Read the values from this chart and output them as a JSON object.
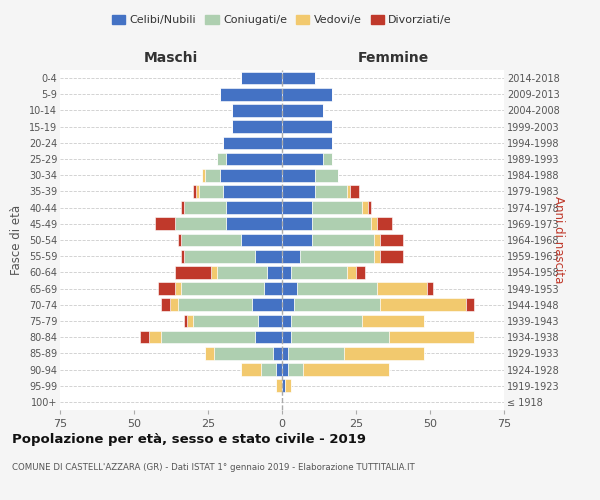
{
  "age_groups": [
    "100+",
    "95-99",
    "90-94",
    "85-89",
    "80-84",
    "75-79",
    "70-74",
    "65-69",
    "60-64",
    "55-59",
    "50-54",
    "45-49",
    "40-44",
    "35-39",
    "30-34",
    "25-29",
    "20-24",
    "15-19",
    "10-14",
    "5-9",
    "0-4"
  ],
  "birth_years": [
    "≤ 1918",
    "1919-1923",
    "1924-1928",
    "1929-1933",
    "1934-1938",
    "1939-1943",
    "1944-1948",
    "1949-1953",
    "1954-1958",
    "1959-1963",
    "1964-1968",
    "1969-1973",
    "1974-1978",
    "1979-1983",
    "1984-1988",
    "1989-1993",
    "1994-1998",
    "1999-2003",
    "2004-2008",
    "2009-2013",
    "2014-2018"
  ],
  "maschi": {
    "celibi": [
      0,
      0,
      2,
      3,
      9,
      8,
      10,
      6,
      5,
      9,
      14,
      19,
      19,
      20,
      21,
      19,
      20,
      17,
      17,
      21,
      14
    ],
    "coniugati": [
      0,
      0,
      5,
      20,
      32,
      22,
      25,
      28,
      17,
      24,
      20,
      17,
      14,
      8,
      5,
      3,
      0,
      0,
      0,
      0,
      0
    ],
    "vedovi": [
      0,
      2,
      7,
      3,
      4,
      2,
      3,
      2,
      2,
      0,
      0,
      0,
      0,
      1,
      1,
      0,
      0,
      0,
      0,
      0,
      0
    ],
    "divorziati": [
      0,
      0,
      0,
      0,
      3,
      1,
      3,
      6,
      12,
      1,
      1,
      7,
      1,
      1,
      0,
      0,
      0,
      0,
      0,
      0,
      0
    ]
  },
  "femmine": {
    "nubili": [
      0,
      1,
      2,
      2,
      3,
      3,
      4,
      5,
      3,
      6,
      10,
      10,
      10,
      11,
      11,
      14,
      17,
      17,
      14,
      17,
      11
    ],
    "coniugate": [
      0,
      0,
      5,
      19,
      33,
      24,
      29,
      27,
      19,
      25,
      21,
      20,
      17,
      11,
      8,
      3,
      0,
      0,
      0,
      0,
      0
    ],
    "vedove": [
      0,
      2,
      29,
      27,
      29,
      21,
      29,
      17,
      3,
      2,
      2,
      2,
      2,
      1,
      0,
      0,
      0,
      0,
      0,
      0,
      0
    ],
    "divorziate": [
      0,
      0,
      0,
      0,
      0,
      0,
      3,
      2,
      3,
      8,
      8,
      5,
      1,
      3,
      0,
      0,
      0,
      0,
      0,
      0,
      0
    ]
  },
  "colors": {
    "celibi": "#4472C4",
    "coniugati": "#AECFB0",
    "vedovi": "#F2C96E",
    "divorziati": "#C0392B"
  },
  "legend_labels": [
    "Celibi/Nubili",
    "Coniugati/e",
    "Vedovi/e",
    "Divorziati/e"
  ],
  "title_main": "Popolazione per età, sesso e stato civile - 2019",
  "title_sub": "COMUNE DI CASTELL'AZZARA (GR) - Dati ISTAT 1° gennaio 2019 - Elaborazione TUTTITALIA.IT",
  "xlabel_left": "Maschi",
  "xlabel_right": "Femmine",
  "ylabel_left": "Fasce di età",
  "ylabel_right": "Anni di nascita",
  "xlim": 75,
  "bg_color": "#f5f5f5",
  "plot_bg": "#ffffff"
}
